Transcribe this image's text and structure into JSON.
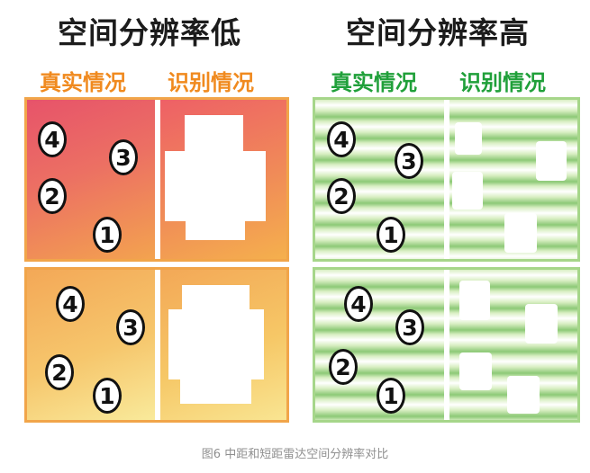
{
  "titles": {
    "left": "空间分辨率低",
    "right": "空间分辨率高"
  },
  "subtitles": {
    "left_real": "真实情况",
    "left_detected": "识别情况",
    "right_real": "真实情况",
    "right_detected": "识别情况"
  },
  "markers": {
    "low_top": [
      "4",
      "3",
      "2",
      "1"
    ],
    "low_bottom": [
      "4",
      "3",
      "2",
      "1"
    ],
    "high_top": [
      "4",
      "3",
      "2",
      "1"
    ],
    "high_bottom": [
      "4",
      "3",
      "2",
      "1"
    ]
  },
  "caption": "图6 中距和短距雷达空间分辨率对比",
  "colors": {
    "orange_text": "#f08a1f",
    "green_text": "#20a03a",
    "low_border": "#f1a54a",
    "high_border": "#a6d68a"
  }
}
